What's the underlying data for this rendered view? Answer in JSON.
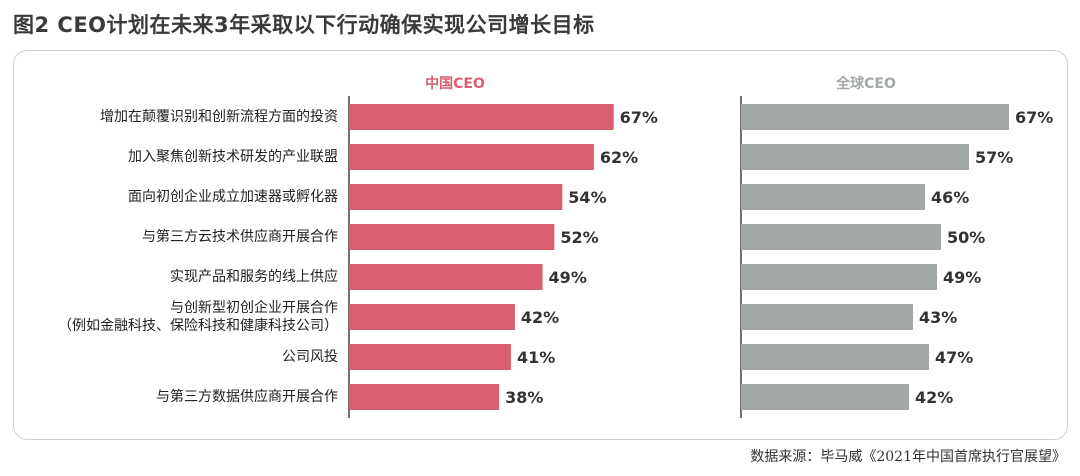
{
  "title": "图2  CEO计划在未来3年采取以下行动确保实现公司增长目标",
  "source": "数据来源：毕马威《2021年中国首席执行官展望》",
  "chart_data": {
    "type": "bar",
    "orientation": "horizontal",
    "categories": [
      "增加在颠覆识别和创新流程方面的投资",
      "加入聚焦创新技术研发的产业联盟",
      "面向初创企业成立加速器或孵化器",
      "与第三方云技术供应商开展合作",
      "实现产品和服务的线上供应",
      "与创新型初创企业开展合作\n（例如金融科技、保险科技和健康科技公司）",
      "公司风投",
      "与第三方数据供应商开展合作"
    ],
    "series": [
      {
        "name": "中国CEO",
        "color": "#d95f70",
        "values": [
          67,
          62,
          54,
          52,
          49,
          42,
          41,
          38
        ]
      },
      {
        "name": "全球CEO",
        "color": "#a2a8a3",
        "values": [
          67,
          57,
          46,
          50,
          49,
          43,
          47,
          42
        ]
      }
    ],
    "value_suffix": "%",
    "grid": false,
    "legend": "panel headers"
  }
}
